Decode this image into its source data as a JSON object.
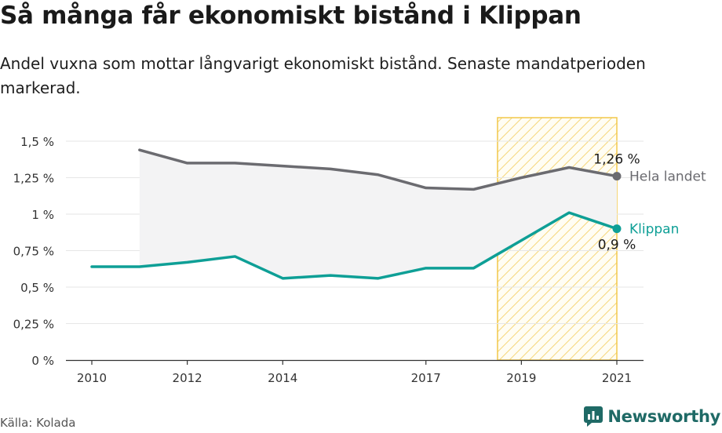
{
  "title": "Så många får ekonomiskt bistånd i Klippan",
  "subtitle": "Andel vuxna som mottar långvarigt ekonomiskt bistånd. Senaste mandatperioden markerad.",
  "source": "Källa: Kolada",
  "logo_text": "Newsworthy",
  "colors": {
    "national": "#6b6b70",
    "local": "#0e9f96",
    "highlight_stroke": "#f2c84b",
    "area": "#f3f3f4",
    "grid": "#e6e6e6"
  },
  "chart_data": {
    "type": "line",
    "x": [
      2010,
      2011,
      2012,
      2013,
      2014,
      2015,
      2016,
      2017,
      2018,
      2019,
      2020,
      2021
    ],
    "x_ticks": [
      2010,
      2012,
      2014,
      2017,
      2019,
      2021
    ],
    "y_ticks": [
      "0 %",
      "0,25 %",
      "0,5 %",
      "0,75 %",
      "1 %",
      "1,25 %",
      "1,5 %"
    ],
    "ylim": [
      0,
      1.5
    ],
    "highlight_range": [
      2018.5,
      2021
    ],
    "series": [
      {
        "name": "Hela landet",
        "values": [
          null,
          1.44,
          1.35,
          1.35,
          1.33,
          1.31,
          1.27,
          1.18,
          1.17,
          1.25,
          1.32,
          1.26
        ],
        "end_label": "1,26 %"
      },
      {
        "name": "Klippan",
        "values": [
          0.64,
          0.64,
          0.67,
          0.71,
          0.56,
          0.58,
          0.56,
          0.63,
          0.63,
          0.82,
          1.01,
          0.9
        ],
        "end_label": "0,9 %"
      }
    ]
  }
}
